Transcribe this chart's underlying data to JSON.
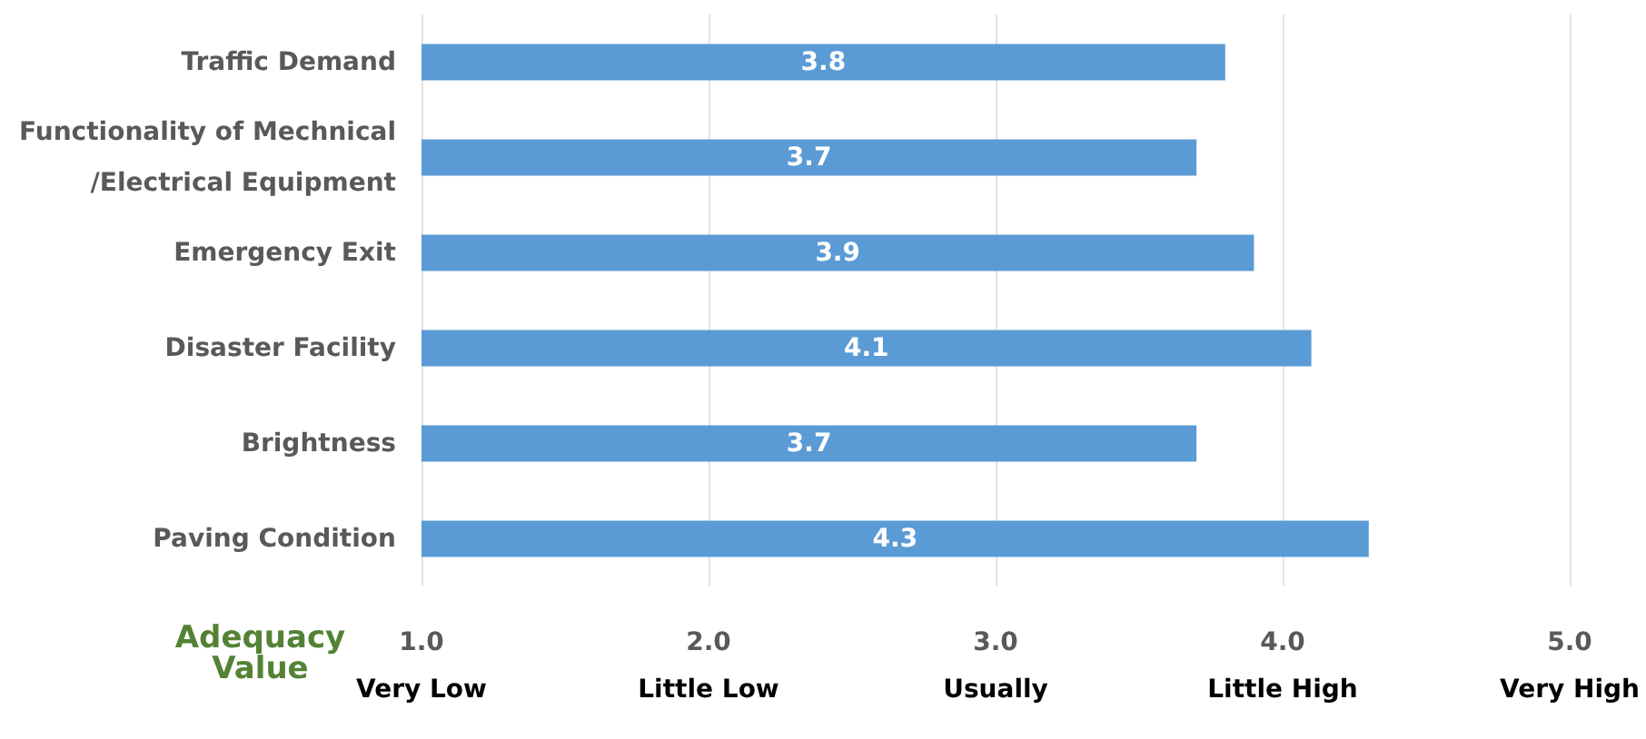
{
  "chart_data": {
    "type": "bar",
    "orientation": "horizontal",
    "xlabel": "Adequacy Value",
    "categories": [
      "Traffic Demand",
      "Functionality of Mechnical\n/Electrical Equipment",
      "Emergency Exit",
      "Disaster Facility",
      "Brightness",
      "Paving Condition"
    ],
    "values": [
      3.8,
      3.7,
      3.9,
      4.1,
      3.7,
      4.3
    ],
    "color": "#5b9bd5",
    "data_labels": true,
    "xlim": [
      1,
      5
    ],
    "xticks": [
      {
        "value": 1,
        "label": "1.0\nVery Low"
      },
      {
        "value": 2,
        "label": "2.0\nLittle Low"
      },
      {
        "value": 3,
        "label": "3.0\nUsually"
      },
      {
        "value": 4,
        "label": "4.0\nLittle High"
      },
      {
        "value": 5,
        "label": "5.0\nVery High"
      }
    ],
    "grid": "x"
  }
}
